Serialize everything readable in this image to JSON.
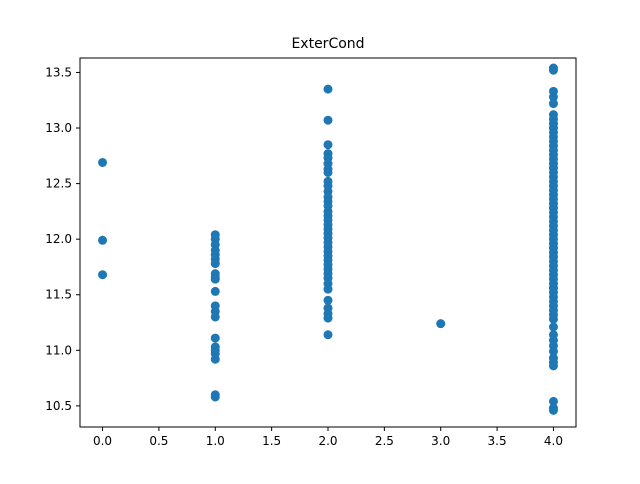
{
  "chart_data": {
    "type": "scatter",
    "title": "ExterCond",
    "xlabel": "",
    "ylabel": "",
    "xlim": [
      -0.2,
      4.2
    ],
    "ylim": [
      10.31,
      13.63
    ],
    "grid": false,
    "legend": "none",
    "marker_color": "#1f77b4",
    "x_ticks": [
      {
        "value": 0.0,
        "label": "0.0"
      },
      {
        "value": 0.5,
        "label": "0.5"
      },
      {
        "value": 1.0,
        "label": "1.0"
      },
      {
        "value": 1.5,
        "label": "1.5"
      },
      {
        "value": 2.0,
        "label": "2.0"
      },
      {
        "value": 2.5,
        "label": "2.5"
      },
      {
        "value": 3.0,
        "label": "3.0"
      },
      {
        "value": 3.5,
        "label": "3.5"
      },
      {
        "value": 4.0,
        "label": "4.0"
      }
    ],
    "y_ticks": [
      {
        "value": 10.5,
        "label": "10.5"
      },
      {
        "value": 11.0,
        "label": "11.0"
      },
      {
        "value": 11.5,
        "label": "11.5"
      },
      {
        "value": 12.0,
        "label": "12.0"
      },
      {
        "value": 12.5,
        "label": "12.5"
      },
      {
        "value": 13.0,
        "label": "13.0"
      },
      {
        "value": 13.5,
        "label": "13.5"
      }
    ],
    "points": [
      {
        "x": 0,
        "y": 12.69
      },
      {
        "x": 0,
        "y": 11.99
      },
      {
        "x": 0,
        "y": 11.68
      },
      {
        "x": 1,
        "y": 12.04
      },
      {
        "x": 1,
        "y": 12.0
      },
      {
        "x": 1,
        "y": 11.95
      },
      {
        "x": 1,
        "y": 11.9
      },
      {
        "x": 1,
        "y": 11.86
      },
      {
        "x": 1,
        "y": 11.82
      },
      {
        "x": 1,
        "y": 11.78
      },
      {
        "x": 1,
        "y": 11.69
      },
      {
        "x": 1,
        "y": 11.66
      },
      {
        "x": 1,
        "y": 11.64
      },
      {
        "x": 1,
        "y": 11.53
      },
      {
        "x": 1,
        "y": 11.4
      },
      {
        "x": 1,
        "y": 11.35
      },
      {
        "x": 1,
        "y": 11.3
      },
      {
        "x": 1,
        "y": 11.11
      },
      {
        "x": 1,
        "y": 11.03
      },
      {
        "x": 1,
        "y": 11.0
      },
      {
        "x": 1,
        "y": 10.97
      },
      {
        "x": 1,
        "y": 10.92
      },
      {
        "x": 1,
        "y": 10.6
      },
      {
        "x": 1,
        "y": 10.58
      },
      {
        "x": 2,
        "y": 13.35
      },
      {
        "x": 2,
        "y": 13.07
      },
      {
        "x": 2,
        "y": 12.85
      },
      {
        "x": 2,
        "y": 12.77
      },
      {
        "x": 2,
        "y": 12.73
      },
      {
        "x": 2,
        "y": 12.68
      },
      {
        "x": 2,
        "y": 12.63
      },
      {
        "x": 2,
        "y": 12.6
      },
      {
        "x": 2,
        "y": 12.52
      },
      {
        "x": 2,
        "y": 12.48
      },
      {
        "x": 2,
        "y": 12.43
      },
      {
        "x": 2,
        "y": 12.38
      },
      {
        "x": 2,
        "y": 12.34
      },
      {
        "x": 2,
        "y": 12.3
      },
      {
        "x": 2,
        "y": 12.25
      },
      {
        "x": 2,
        "y": 12.21
      },
      {
        "x": 2,
        "y": 12.17
      },
      {
        "x": 2,
        "y": 12.13
      },
      {
        "x": 2,
        "y": 12.09
      },
      {
        "x": 2,
        "y": 12.05
      },
      {
        "x": 2,
        "y": 12.01
      },
      {
        "x": 2,
        "y": 11.97
      },
      {
        "x": 2,
        "y": 11.93
      },
      {
        "x": 2,
        "y": 11.89
      },
      {
        "x": 2,
        "y": 11.85
      },
      {
        "x": 2,
        "y": 11.81
      },
      {
        "x": 2,
        "y": 11.77
      },
      {
        "x": 2,
        "y": 11.73
      },
      {
        "x": 2,
        "y": 11.69
      },
      {
        "x": 2,
        "y": 11.65
      },
      {
        "x": 2,
        "y": 11.6
      },
      {
        "x": 2,
        "y": 11.55
      },
      {
        "x": 2,
        "y": 11.45
      },
      {
        "x": 2,
        "y": 11.38
      },
      {
        "x": 2,
        "y": 11.33
      },
      {
        "x": 2,
        "y": 11.29
      },
      {
        "x": 2,
        "y": 11.14
      },
      {
        "x": 3,
        "y": 11.24
      },
      {
        "x": 4,
        "y": 13.54
      },
      {
        "x": 4,
        "y": 13.52
      },
      {
        "x": 4,
        "y": 13.33
      },
      {
        "x": 4,
        "y": 13.28
      },
      {
        "x": 4,
        "y": 13.22
      },
      {
        "x": 4,
        "y": 13.12
      },
      {
        "x": 4,
        "y": 13.08
      },
      {
        "x": 4,
        "y": 13.04
      },
      {
        "x": 4,
        "y": 13.0
      },
      {
        "x": 4,
        "y": 12.96
      },
      {
        "x": 4,
        "y": 12.92
      },
      {
        "x": 4,
        "y": 12.88
      },
      {
        "x": 4,
        "y": 12.84
      },
      {
        "x": 4,
        "y": 12.8
      },
      {
        "x": 4,
        "y": 12.76
      },
      {
        "x": 4,
        "y": 12.72
      },
      {
        "x": 4,
        "y": 12.68
      },
      {
        "x": 4,
        "y": 12.64
      },
      {
        "x": 4,
        "y": 12.6
      },
      {
        "x": 4,
        "y": 12.56
      },
      {
        "x": 4,
        "y": 12.52
      },
      {
        "x": 4,
        "y": 12.48
      },
      {
        "x": 4,
        "y": 12.44
      },
      {
        "x": 4,
        "y": 12.4
      },
      {
        "x": 4,
        "y": 12.36
      },
      {
        "x": 4,
        "y": 12.32
      },
      {
        "x": 4,
        "y": 12.28
      },
      {
        "x": 4,
        "y": 12.24
      },
      {
        "x": 4,
        "y": 12.2
      },
      {
        "x": 4,
        "y": 12.16
      },
      {
        "x": 4,
        "y": 12.12
      },
      {
        "x": 4,
        "y": 12.08
      },
      {
        "x": 4,
        "y": 12.04
      },
      {
        "x": 4,
        "y": 12.0
      },
      {
        "x": 4,
        "y": 11.96
      },
      {
        "x": 4,
        "y": 11.92
      },
      {
        "x": 4,
        "y": 11.88
      },
      {
        "x": 4,
        "y": 11.84
      },
      {
        "x": 4,
        "y": 11.8
      },
      {
        "x": 4,
        "y": 11.76
      },
      {
        "x": 4,
        "y": 11.72
      },
      {
        "x": 4,
        "y": 11.68
      },
      {
        "x": 4,
        "y": 11.64
      },
      {
        "x": 4,
        "y": 11.6
      },
      {
        "x": 4,
        "y": 11.56
      },
      {
        "x": 4,
        "y": 11.52
      },
      {
        "x": 4,
        "y": 11.48
      },
      {
        "x": 4,
        "y": 11.44
      },
      {
        "x": 4,
        "y": 11.4
      },
      {
        "x": 4,
        "y": 11.36
      },
      {
        "x": 4,
        "y": 11.32
      },
      {
        "x": 4,
        "y": 11.28
      },
      {
        "x": 4,
        "y": 11.21
      },
      {
        "x": 4,
        "y": 11.14
      },
      {
        "x": 4,
        "y": 11.09
      },
      {
        "x": 4,
        "y": 11.04
      },
      {
        "x": 4,
        "y": 10.99
      },
      {
        "x": 4,
        "y": 10.93
      },
      {
        "x": 4,
        "y": 10.89
      },
      {
        "x": 4,
        "y": 10.86
      },
      {
        "x": 4,
        "y": 10.54
      },
      {
        "x": 4,
        "y": 10.48
      },
      {
        "x": 4,
        "y": 10.46
      }
    ]
  }
}
